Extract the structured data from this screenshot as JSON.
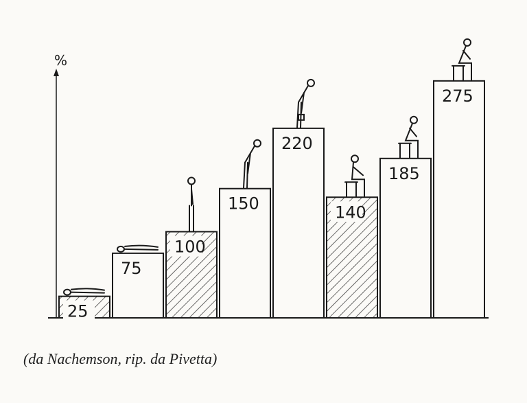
{
  "chart_data": {
    "type": "bar",
    "ylabel": "%",
    "values": [
      25,
      75,
      100,
      150,
      220,
      140,
      185,
      275
    ],
    "value_labels": [
      "25",
      "75",
      "100",
      "150",
      "220",
      "140",
      "185",
      "275"
    ],
    "hatched": [
      true,
      false,
      true,
      false,
      false,
      true,
      false,
      false
    ],
    "figures": [
      "lying-flat",
      "lying-side",
      "standing",
      "bending-forward",
      "bending-lifting",
      "sitting",
      "sitting-forward",
      "sitting-lifting"
    ],
    "ylim": [
      0,
      290
    ],
    "grid": false
  },
  "caption": "(da Nachemson, rip. da Pivetta)",
  "colors": {
    "ink": "#1a1a1a",
    "paper": "#fbfaf7"
  }
}
